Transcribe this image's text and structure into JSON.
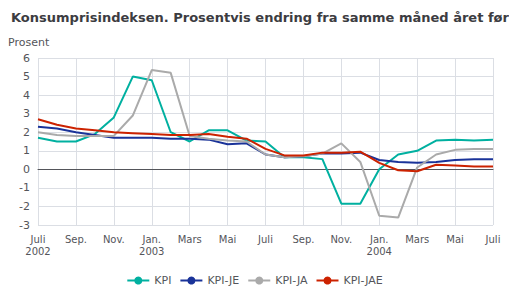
{
  "chart_data": {
    "type": "line",
    "title": "Konsumprisindeksen. Prosentvis endring fra samme måned året før",
    "y_label": "Prosent",
    "categories": [
      "Juli\n2002",
      null,
      "Sep.",
      null,
      "Nov.",
      null,
      "Jan.\n2003",
      null,
      "Mars",
      null,
      "Mai",
      null,
      "Juli",
      null,
      "Sep.",
      null,
      "Nov.",
      null,
      "Jan.\n2004",
      null,
      "Mars",
      null,
      "Mai",
      null,
      "Juli"
    ],
    "series": [
      {
        "name": "KPI",
        "color": "#00b0a0",
        "values": [
          1.7,
          1.5,
          1.5,
          1.9,
          2.8,
          5.0,
          4.8,
          2.0,
          1.5,
          2.1,
          2.1,
          1.55,
          1.5,
          0.65,
          0.65,
          0.55,
          -1.85,
          -1.85,
          0.0,
          0.8,
          1.0,
          1.55,
          1.6,
          1.55,
          1.6
        ]
      },
      {
        "name": "KPI-JE",
        "color": "#1a3399",
        "values": [
          2.3,
          2.2,
          2.0,
          1.85,
          1.7,
          1.7,
          1.7,
          1.65,
          1.65,
          1.6,
          1.35,
          1.4,
          0.8,
          0.65,
          0.7,
          0.85,
          0.85,
          0.9,
          0.5,
          0.4,
          0.35,
          0.4,
          0.5,
          0.55,
          0.55
        ]
      },
      {
        "name": "KPI-JA",
        "color": "#aaaaaa",
        "values": [
          2.0,
          1.85,
          1.8,
          1.8,
          1.8,
          2.9,
          5.35,
          5.2,
          1.8,
          1.65,
          1.55,
          1.5,
          0.8,
          0.65,
          0.7,
          0.85,
          1.4,
          0.4,
          -2.5,
          -2.6,
          0.1,
          0.8,
          1.05,
          1.1,
          1.1
        ]
      },
      {
        "name": "KPI-JAE",
        "color": "#cc2200",
        "values": [
          2.7,
          2.4,
          2.2,
          2.1,
          2.0,
          1.95,
          1.9,
          1.85,
          1.85,
          1.9,
          1.75,
          1.65,
          1.1,
          0.75,
          0.75,
          0.9,
          0.9,
          0.95,
          0.35,
          -0.05,
          -0.1,
          0.25,
          0.2,
          0.15,
          0.15
        ]
      }
    ],
    "ylim": [
      -3,
      6
    ],
    "yticks": [
      -3,
      -2,
      -1,
      0,
      1,
      2,
      3,
      4,
      5,
      6
    ],
    "grid": true,
    "legend": "bottom"
  }
}
